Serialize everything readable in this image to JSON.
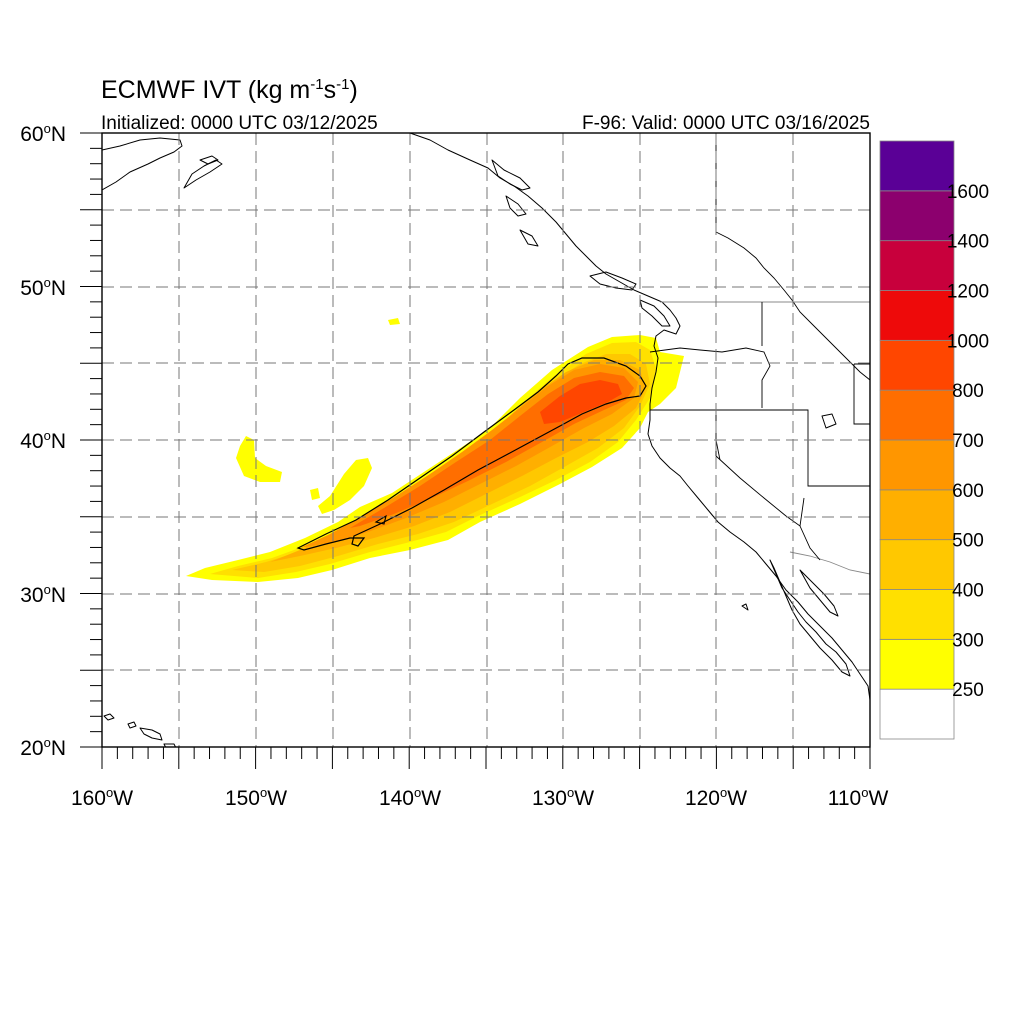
{
  "header": {
    "title_main": "ECMWF IVT (kg m",
    "title_sup1": "-1",
    "title_mid": "s",
    "title_sup2": "-1",
    "title_end": ")",
    "initialized": "Initialized: 0000 UTC 03/12/2025",
    "valid": "F-96: Valid: 0000 UTC 03/16/2025"
  },
  "axes": {
    "lat_labels": [
      {
        "num": "60",
        "sup": "o",
        "hem": "N"
      },
      {
        "num": "50",
        "sup": "o",
        "hem": "N"
      },
      {
        "num": "40",
        "sup": "o",
        "hem": "N"
      },
      {
        "num": "30",
        "sup": "o",
        "hem": "N"
      },
      {
        "num": "20",
        "sup": "o",
        "hem": "N"
      }
    ],
    "lon_labels": [
      {
        "num": "160",
        "sup": "o",
        "hem": "W"
      },
      {
        "num": "150",
        "sup": "o",
        "hem": "W"
      },
      {
        "num": "140",
        "sup": "o",
        "hem": "W"
      },
      {
        "num": "130",
        "sup": "o",
        "hem": "W"
      },
      {
        "num": "120",
        "sup": "o",
        "hem": "W"
      },
      {
        "num": "110",
        "sup": "o",
        "hem": "W"
      }
    ],
    "lon_range": [
      -160,
      -110
    ],
    "lat_range": [
      20,
      60
    ],
    "grid_spacing_deg": 5,
    "grid": true
  },
  "colorbar": {
    "labels": [
      "250",
      "300",
      "400",
      "500",
      "600",
      "700",
      "800",
      "1000",
      "1200",
      "1400",
      "1600"
    ],
    "colors": [
      "#ffffff",
      "#ffff00",
      "#ffe000",
      "#ffc800",
      "#ffaf00",
      "#ff9600",
      "#ff6e00",
      "#ff4600",
      "#ee0a0a",
      "#c8003c",
      "#8c006e",
      "#5a0096"
    ]
  },
  "chart_data": {
    "type": "map",
    "field": "Integrated Vapor Transport",
    "contour_levels": [
      250,
      300,
      400,
      500,
      600,
      700,
      800,
      1000,
      1200,
      1400,
      1600
    ],
    "black_contour_level": 500,
    "plume_core": {
      "lon_min": -147,
      "lon_max": -125.5,
      "lat_min": 31,
      "lat_max": 45
    }
  }
}
